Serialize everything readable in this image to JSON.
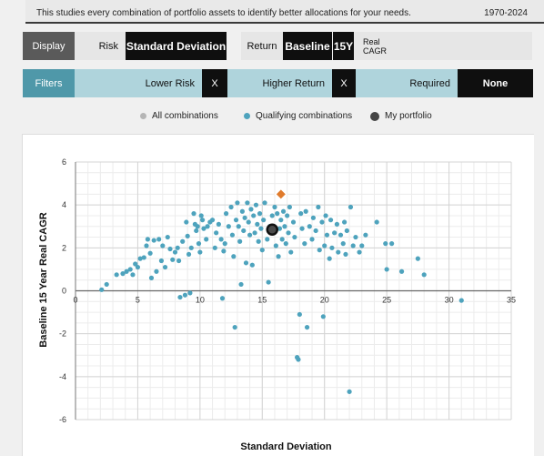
{
  "header": {
    "description": "This studies every combination of portfolio assets to identify better allocations for your needs.",
    "years": "1970-2024"
  },
  "display_row": {
    "display_label": "Display",
    "risk_label": "Risk",
    "risk_value": "Standard Deviation",
    "return_label": "Return",
    "return_value": "Baseline",
    "horizon": "15Y",
    "return_type_line1": "Real",
    "return_type_line2": "CAGR"
  },
  "filters_row": {
    "filters_label": "Filters",
    "lower_risk": "Lower Risk",
    "lower_risk_close": "X",
    "higher_return": "Higher Return",
    "higher_return_close": "X",
    "required": "Required",
    "required_value": "None"
  },
  "legend": {
    "all": "All combinations",
    "qualifying": "Qualifying combinations",
    "mine": "My portfolio"
  },
  "colors": {
    "qualifying": "#4ea3bd",
    "all": "#b5b5b5",
    "mine": "#111111",
    "highlight": "#e07b2c"
  },
  "chart_data": {
    "type": "scatter",
    "xlabel": "Standard Deviation",
    "ylabel": "Baseline 15 Year Real CAGR",
    "xlim": [
      0,
      35
    ],
    "ylim": [
      -6,
      6
    ],
    "xticks": [
      0,
      5,
      10,
      15,
      20,
      25,
      30,
      35
    ],
    "yticks": [
      -6,
      -4,
      -2,
      0,
      2,
      4,
      6
    ],
    "grid": true,
    "series": [
      {
        "name": "Qualifying combinations",
        "points": [
          [
            2.1,
            0.05
          ],
          [
            2.5,
            0.3
          ],
          [
            3.3,
            0.75
          ],
          [
            3.8,
            0.8
          ],
          [
            4.1,
            0.9
          ],
          [
            4.4,
            1.0
          ],
          [
            4.6,
            0.75
          ],
          [
            4.8,
            1.25
          ],
          [
            5.0,
            1.1
          ],
          [
            5.2,
            1.5
          ],
          [
            5.5,
            1.55
          ],
          [
            5.7,
            2.1
          ],
          [
            5.8,
            2.4
          ],
          [
            6.0,
            1.75
          ],
          [
            6.1,
            0.6
          ],
          [
            6.3,
            2.35
          ],
          [
            6.5,
            0.9
          ],
          [
            6.7,
            2.4
          ],
          [
            6.9,
            1.4
          ],
          [
            7.0,
            2.1
          ],
          [
            7.2,
            1.1
          ],
          [
            7.4,
            2.5
          ],
          [
            7.6,
            1.95
          ],
          [
            7.8,
            1.45
          ],
          [
            8.0,
            1.8
          ],
          [
            8.2,
            2.0
          ],
          [
            8.3,
            1.4
          ],
          [
            8.4,
            -0.3
          ],
          [
            8.6,
            2.3
          ],
          [
            8.8,
            -0.2
          ],
          [
            8.9,
            3.2
          ],
          [
            9.0,
            2.55
          ],
          [
            9.1,
            1.7
          ],
          [
            9.2,
            -0.1
          ],
          [
            9.3,
            2.0
          ],
          [
            9.5,
            3.6
          ],
          [
            9.6,
            3.1
          ],
          [
            9.7,
            2.8
          ],
          [
            9.8,
            3.0
          ],
          [
            9.9,
            2.2
          ],
          [
            10.0,
            1.8
          ],
          [
            10.1,
            3.5
          ],
          [
            10.2,
            3.3
          ],
          [
            10.3,
            2.9
          ],
          [
            10.5,
            2.4
          ],
          [
            10.6,
            3.0
          ],
          [
            10.8,
            3.2
          ],
          [
            11.0,
            3.3
          ],
          [
            11.2,
            2.0
          ],
          [
            11.3,
            2.7
          ],
          [
            11.5,
            3.1
          ],
          [
            11.7,
            2.4
          ],
          [
            11.8,
            -0.35
          ],
          [
            11.9,
            1.85
          ],
          [
            12.0,
            2.2
          ],
          [
            12.1,
            3.6
          ],
          [
            12.3,
            3.0
          ],
          [
            12.5,
            3.9
          ],
          [
            12.6,
            2.6
          ],
          [
            12.7,
            1.6
          ],
          [
            12.8,
            -1.7
          ],
          [
            12.9,
            3.3
          ],
          [
            13.0,
            4.1
          ],
          [
            13.1,
            3.0
          ],
          [
            13.2,
            2.3
          ],
          [
            13.3,
            0.3
          ],
          [
            13.4,
            3.7
          ],
          [
            13.5,
            2.8
          ],
          [
            13.6,
            3.4
          ],
          [
            13.7,
            1.3
          ],
          [
            13.8,
            4.1
          ],
          [
            13.9,
            3.2
          ],
          [
            14.0,
            2.6
          ],
          [
            14.1,
            3.8
          ],
          [
            14.2,
            1.2
          ],
          [
            14.3,
            3.5
          ],
          [
            14.4,
            2.7
          ],
          [
            14.5,
            4.0
          ],
          [
            14.6,
            3.1
          ],
          [
            14.7,
            2.3
          ],
          [
            14.8,
            3.6
          ],
          [
            14.9,
            2.9
          ],
          [
            15.0,
            1.9
          ],
          [
            15.1,
            3.3
          ],
          [
            15.2,
            4.1
          ],
          [
            15.4,
            2.4
          ],
          [
            15.5,
            0.4
          ],
          [
            15.6,
            3.0
          ],
          [
            15.7,
            2.7
          ],
          [
            15.8,
            3.5
          ],
          [
            16.0,
            3.9
          ],
          [
            16.1,
            2.1
          ],
          [
            16.2,
            3.6
          ],
          [
            16.3,
            1.6
          ],
          [
            16.4,
            2.9
          ],
          [
            16.5,
            3.3
          ],
          [
            16.6,
            2.4
          ],
          [
            16.7,
            3.7
          ],
          [
            16.8,
            3.0
          ],
          [
            16.9,
            2.2
          ],
          [
            17.0,
            3.5
          ],
          [
            17.1,
            2.7
          ],
          [
            17.2,
            3.9
          ],
          [
            17.3,
            1.8
          ],
          [
            17.5,
            3.2
          ],
          [
            17.6,
            2.5
          ],
          [
            17.8,
            -3.1
          ],
          [
            17.9,
            -3.2
          ],
          [
            18.0,
            -1.1
          ],
          [
            18.1,
            3.6
          ],
          [
            18.2,
            2.9
          ],
          [
            18.4,
            2.2
          ],
          [
            18.5,
            3.7
          ],
          [
            18.6,
            -1.7
          ],
          [
            18.8,
            3.0
          ],
          [
            19.0,
            2.4
          ],
          [
            19.1,
            3.4
          ],
          [
            19.3,
            2.8
          ],
          [
            19.5,
            3.9
          ],
          [
            19.6,
            1.9
          ],
          [
            19.8,
            3.2
          ],
          [
            19.9,
            -1.2
          ],
          [
            20.0,
            2.1
          ],
          [
            20.1,
            3.5
          ],
          [
            20.2,
            2.6
          ],
          [
            20.4,
            1.5
          ],
          [
            20.5,
            3.3
          ],
          [
            20.6,
            2.0
          ],
          [
            20.8,
            2.7
          ],
          [
            21.0,
            3.1
          ],
          [
            21.1,
            1.8
          ],
          [
            21.3,
            2.6
          ],
          [
            21.5,
            2.2
          ],
          [
            21.6,
            3.2
          ],
          [
            21.7,
            1.7
          ],
          [
            21.8,
            2.8
          ],
          [
            22.0,
            -4.7
          ],
          [
            22.1,
            3.9
          ],
          [
            22.3,
            2.1
          ],
          [
            22.5,
            2.5
          ],
          [
            22.8,
            1.8
          ],
          [
            23.0,
            2.1
          ],
          [
            23.3,
            2.6
          ],
          [
            24.2,
            3.2
          ],
          [
            24.9,
            2.2
          ],
          [
            25.0,
            1.0
          ],
          [
            25.4,
            2.2
          ],
          [
            26.2,
            0.9
          ],
          [
            27.5,
            1.5
          ],
          [
            28.0,
            0.75
          ],
          [
            31.0,
            -0.45
          ]
        ]
      }
    ],
    "my_portfolio": [
      15.8,
      2.85
    ],
    "highlight_point": [
      16.5,
      4.5
    ]
  }
}
